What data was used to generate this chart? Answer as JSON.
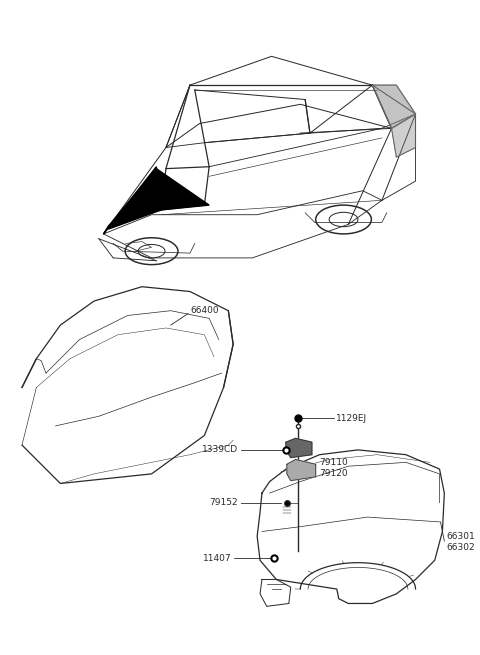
{
  "bg_color": "#ffffff",
  "line_color": "#2a2a2a",
  "text_color": "#2a2a2a",
  "lw_main": 0.9,
  "lw_thin": 0.5,
  "fs": 6.5
}
